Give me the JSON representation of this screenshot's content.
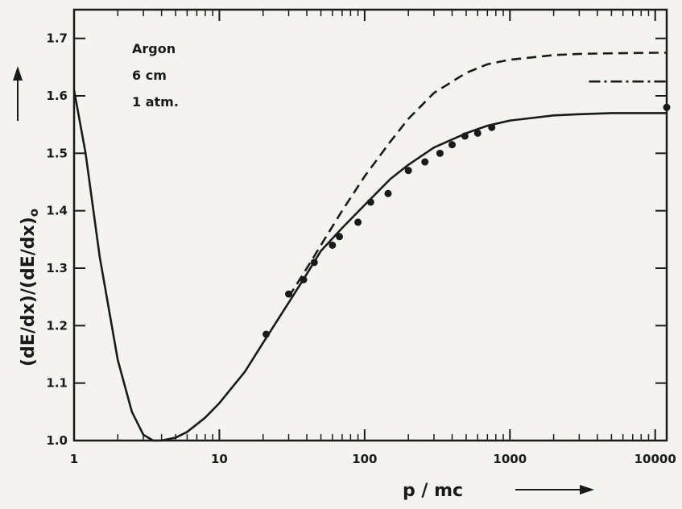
{
  "chart_data": {
    "type": "line",
    "title": "",
    "xlabel": "p / mc",
    "ylabel": "(dE/dx)/(dE/dx)",
    "ylabel_subscript": "o",
    "x_scale": "log",
    "xlim": [
      1,
      12000
    ],
    "ylim": [
      1.0,
      1.75
    ],
    "x_ticks": [
      1,
      10,
      100,
      1000,
      10000
    ],
    "x_tick_labels": [
      "1",
      "10",
      "100",
      "1000",
      "10000"
    ],
    "y_ticks": [
      1.0,
      1.1,
      1.2,
      1.3,
      1.4,
      1.5,
      1.6,
      1.7
    ],
    "y_tick_labels": [
      "1.0",
      "1.1",
      "1.2",
      "1.3",
      "1.4",
      "1.5",
      "1.6",
      "1.7"
    ],
    "annotations": [
      "Argon",
      "6 cm",
      "1 atm."
    ],
    "series": [
      {
        "style": "solid",
        "x": [
          1,
          1.2,
          1.5,
          2,
          2.5,
          3,
          3.5,
          4,
          5,
          6,
          8,
          10,
          15,
          20,
          30,
          40,
          50,
          70,
          100,
          150,
          200,
          300,
          500,
          700,
          1000,
          2000,
          3000,
          5000,
          10000,
          12000
        ],
        "y": [
          1.61,
          1.5,
          1.32,
          1.14,
          1.05,
          1.01,
          1.0,
          1.0,
          1.005,
          1.015,
          1.04,
          1.065,
          1.12,
          1.17,
          1.24,
          1.29,
          1.33,
          1.37,
          1.41,
          1.455,
          1.48,
          1.51,
          1.535,
          1.548,
          1.557,
          1.566,
          1.568,
          1.57,
          1.57,
          1.57
        ]
      },
      {
        "style": "dashed",
        "x": [
          30,
          40,
          50,
          70,
          100,
          150,
          200,
          300,
          500,
          700,
          1000,
          2000,
          3000,
          5000,
          10000,
          12000
        ],
        "y": [
          1.25,
          1.3,
          1.34,
          1.4,
          1.46,
          1.52,
          1.56,
          1.605,
          1.64,
          1.655,
          1.663,
          1.671,
          1.673,
          1.674,
          1.675,
          1.675
        ]
      },
      {
        "style": "dash-dot",
        "x": [
          3500,
          12000
        ],
        "y": [
          1.625,
          1.625
        ]
      },
      {
        "style": "points",
        "x": [
          21,
          30,
          38,
          45,
          60,
          67,
          90,
          110,
          145,
          200,
          260,
          330,
          400,
          490,
          600,
          750,
          12000
        ],
        "y": [
          1.185,
          1.255,
          1.28,
          1.31,
          1.34,
          1.355,
          1.38,
          1.415,
          1.43,
          1.47,
          1.485,
          1.5,
          1.515,
          1.53,
          1.535,
          1.545,
          1.58
        ]
      }
    ],
    "colors": {
      "ink": "#1a1a1a",
      "background": "#f4f3ef"
    }
  }
}
